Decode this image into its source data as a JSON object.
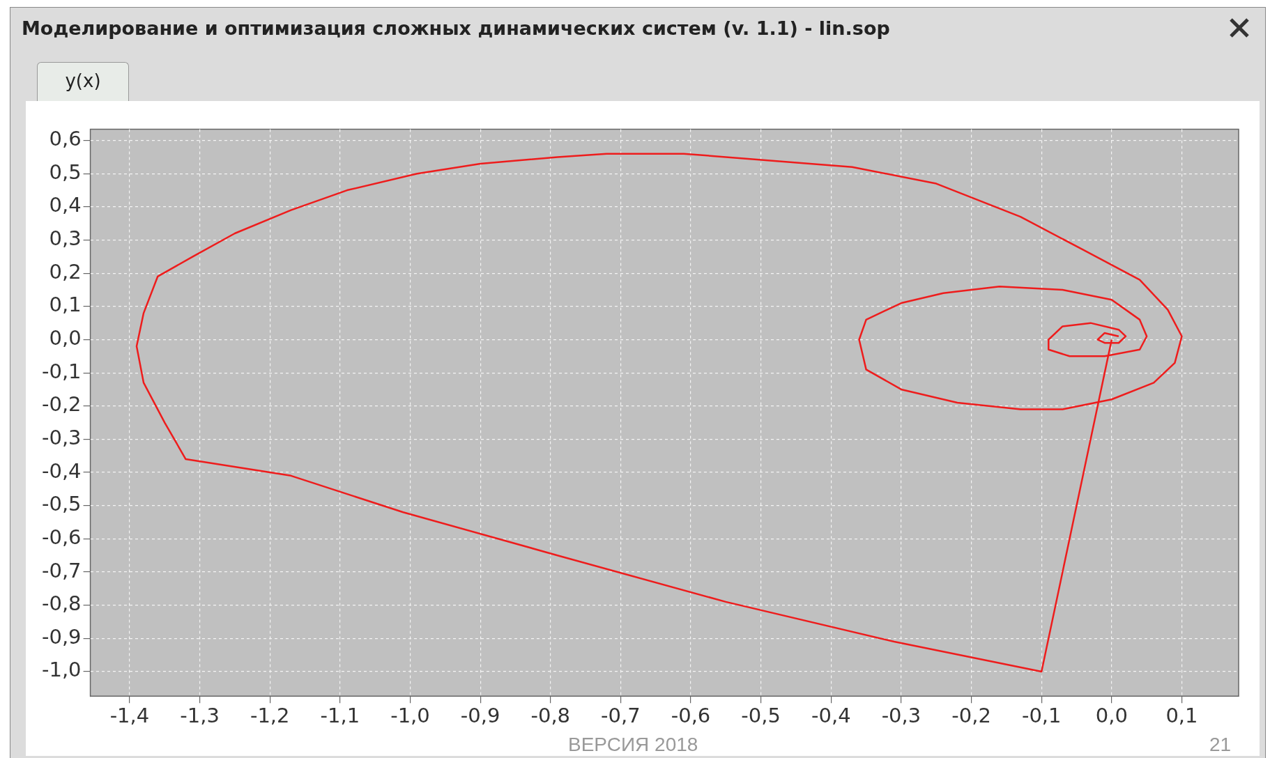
{
  "chart_data": {
    "type": "line",
    "title": "Моделирование и оптимизация сложных динамических систем (v. 1.1) - lin.sop",
    "subtitle": "y(x)",
    "annotations": [
      "ВЕРСИЯ 2018",
      "21"
    ],
    "series": [
      {
        "color": "#ee1c1c",
        "x": [
          0.0,
          -0.1,
          -0.31,
          -0.55,
          -0.79,
          -1.01,
          -1.17,
          -1.32,
          -1.35,
          -1.38,
          -1.39,
          -1.38,
          -1.36,
          -1.31,
          -1.25,
          -1.17,
          -1.09,
          -0.99,
          -0.9,
          -0.79,
          -0.72,
          -0.61,
          -0.49,
          -0.37,
          -0.25,
          -0.13,
          -0.04,
          0.04,
          0.08,
          0.1,
          0.09,
          0.06,
          0.0,
          -0.07,
          -0.13,
          -0.22,
          -0.3,
          -0.35,
          -0.36,
          -0.35,
          -0.3,
          -0.24,
          -0.16,
          -0.07,
          0.0,
          0.04,
          0.05,
          0.04,
          -0.01,
          -0.06,
          -0.09,
          -0.09,
          -0.07,
          -0.03,
          0.01,
          0.02,
          0.01,
          -0.01,
          -0.02,
          -0.01,
          0.01
        ],
        "values": [
          0.0,
          -1.0,
          -0.91,
          -0.79,
          -0.65,
          -0.52,
          -0.41,
          -0.36,
          -0.25,
          -0.13,
          -0.02,
          0.08,
          0.19,
          0.25,
          0.32,
          0.39,
          0.45,
          0.5,
          0.53,
          0.55,
          0.56,
          0.56,
          0.54,
          0.52,
          0.47,
          0.37,
          0.27,
          0.18,
          0.09,
          0.01,
          -0.07,
          -0.13,
          -0.18,
          -0.21,
          -0.21,
          -0.19,
          -0.15,
          -0.09,
          0.0,
          0.06,
          0.11,
          0.14,
          0.16,
          0.15,
          0.12,
          0.06,
          0.01,
          -0.03,
          -0.05,
          -0.05,
          -0.03,
          0.0,
          0.04,
          0.05,
          0.03,
          0.01,
          -0.01,
          -0.01,
          0.0,
          0.02,
          0.01
        ]
      }
    ],
    "xlim": [
      -1.456,
      0.181
    ],
    "ylim": [
      -1.074,
      0.634
    ],
    "xticks": [
      {
        "value": -1.4,
        "label": "-1,4"
      },
      {
        "value": -1.3,
        "label": "-1,3"
      },
      {
        "value": -1.2,
        "label": "-1,2"
      },
      {
        "value": -1.1,
        "label": "-1,1"
      },
      {
        "value": -1.0,
        "label": "-1,0"
      },
      {
        "value": -0.9,
        "label": "-0,9"
      },
      {
        "value": -0.8,
        "label": "-0,8"
      },
      {
        "value": -0.7,
        "label": "-0,7"
      },
      {
        "value": -0.6,
        "label": "-0,6"
      },
      {
        "value": -0.5,
        "label": "-0,5"
      },
      {
        "value": -0.4,
        "label": "-0,4"
      },
      {
        "value": -0.3,
        "label": "-0,3"
      },
      {
        "value": -0.2,
        "label": "-0,2"
      },
      {
        "value": -0.1,
        "label": "-0,1"
      },
      {
        "value": 0,
        "label": "0,0"
      },
      {
        "value": 0.1,
        "label": "0,1"
      }
    ],
    "yticks": [
      {
        "value": 0.6,
        "label": "0,6"
      },
      {
        "value": 0.5,
        "label": "0,5"
      },
      {
        "value": 0.4,
        "label": "0,4"
      },
      {
        "value": 0.3,
        "label": "0,3"
      },
      {
        "value": 0.2,
        "label": "0,2"
      },
      {
        "value": 0.1,
        "label": "0,1"
      },
      {
        "value": 0,
        "label": "0,0"
      },
      {
        "value": -0.1,
        "label": "-0,1"
      },
      {
        "value": -0.2,
        "label": "-0,2"
      },
      {
        "value": -0.3,
        "label": "-0,3"
      },
      {
        "value": -0.4,
        "label": "-0,4"
      },
      {
        "value": -0.5,
        "label": "-0,5"
      },
      {
        "value": -0.6,
        "label": "-0,6"
      },
      {
        "value": -0.7,
        "label": "-0,7"
      },
      {
        "value": -0.8,
        "label": "-0,8"
      },
      {
        "value": -0.9,
        "label": "-0,9"
      },
      {
        "value": -1.0,
        "label": "-1,0"
      }
    ],
    "grid": true,
    "legend": false,
    "marker": "none",
    "line_style": "solid"
  }
}
